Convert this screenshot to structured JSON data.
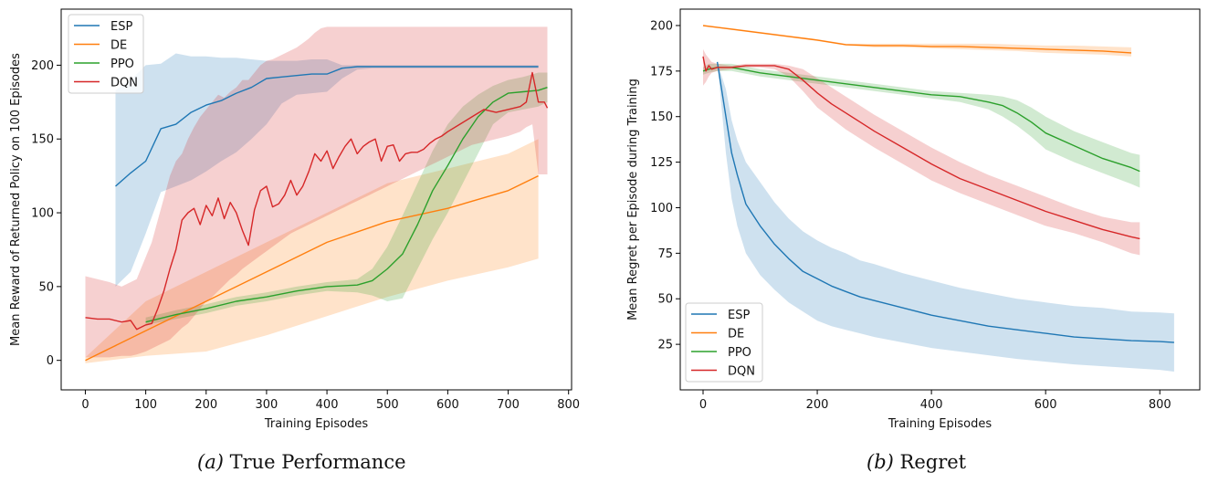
{
  "chart_data": [
    {
      "id": "a",
      "type": "line",
      "caption_letter": "(a)",
      "caption_text": "True Performance",
      "title": "",
      "xlabel": "Training Episodes",
      "ylabel": "Mean Reward of Returned Policy on 100 Episodes",
      "xlim": [
        -40,
        805
      ],
      "ylim": [
        -20,
        238
      ],
      "xticks": [
        0,
        100,
        200,
        300,
        400,
        500,
        600,
        700,
        800
      ],
      "yticks": [
        0,
        50,
        100,
        150,
        200
      ],
      "grid": false,
      "legend_position": "top-left",
      "series": [
        {
          "name": "ESP",
          "color": "#1f77b4",
          "x": [
            50,
            75,
            100,
            125,
            150,
            175,
            200,
            225,
            250,
            275,
            300,
            325,
            350,
            375,
            400,
            425,
            450,
            475,
            500,
            525,
            550,
            575,
            600,
            625,
            650,
            675,
            700,
            725,
            750
          ],
          "y": [
            118,
            127,
            135,
            157,
            160,
            168,
            173,
            176,
            181,
            185,
            191,
            192,
            193,
            194,
            194,
            198,
            199,
            199,
            199,
            199,
            199,
            199,
            199,
            199,
            199,
            199,
            199,
            199,
            199
          ],
          "band_upper": [
            183,
            190,
            200,
            201,
            208,
            206,
            206,
            205,
            205,
            204,
            203,
            203,
            203,
            204,
            204,
            200,
            200,
            200,
            200,
            200,
            200,
            200,
            200,
            200,
            200,
            200,
            200,
            200,
            200
          ],
          "band_lower": [
            50,
            60,
            86,
            114,
            118,
            122,
            128,
            135,
            141,
            150,
            160,
            174,
            180,
            181,
            182,
            191,
            197,
            198,
            198,
            198,
            198,
            198,
            198,
            198,
            198,
            198,
            198,
            198,
            198
          ]
        },
        {
          "name": "DE",
          "color": "#ff7f0e",
          "x": [
            0,
            100,
            200,
            300,
            400,
            500,
            600,
            700,
            750
          ],
          "y": [
            0,
            20,
            40,
            60,
            80,
            94,
            103,
            115,
            125
          ],
          "band_upper": [
            2,
            40,
            60,
            80,
            100,
            120,
            130,
            140,
            150
          ],
          "band_lower": [
            -2,
            3,
            6,
            17,
            30,
            43,
            54,
            63,
            69
          ]
        },
        {
          "name": "PPO",
          "color": "#2ca02c",
          "x": [
            100,
            150,
            200,
            250,
            300,
            350,
            400,
            450,
            475,
            500,
            525,
            550,
            575,
            600,
            625,
            650,
            675,
            700,
            725,
            750,
            765
          ],
          "y": [
            26,
            31,
            35,
            40,
            43,
            47,
            50,
            51,
            54,
            62,
            72,
            92,
            115,
            132,
            150,
            165,
            175,
            181,
            182,
            183,
            185
          ],
          "band_upper": [
            29,
            34,
            38,
            43,
            46,
            50,
            53,
            55,
            62,
            77,
            98,
            120,
            142,
            160,
            172,
            180,
            186,
            190,
            192,
            195,
            195
          ],
          "band_lower": [
            24,
            28,
            32,
            37,
            40,
            44,
            47,
            46,
            44,
            40,
            42,
            62,
            82,
            100,
            120,
            140,
            160,
            168,
            170,
            172,
            175
          ]
        },
        {
          "name": "DQN",
          "color": "#d62728",
          "x": [
            0,
            20,
            40,
            60,
            75,
            85,
            100,
            110,
            120,
            130,
            140,
            150,
            160,
            170,
            180,
            190,
            200,
            210,
            220,
            230,
            240,
            250,
            260,
            270,
            280,
            290,
            300,
            310,
            320,
            330,
            340,
            350,
            360,
            370,
            380,
            390,
            400,
            410,
            420,
            430,
            440,
            450,
            460,
            470,
            480,
            490,
            500,
            510,
            520,
            530,
            540,
            550,
            560,
            570,
            580,
            590,
            600,
            620,
            640,
            660,
            680,
            700,
            720,
            730,
            740,
            750,
            760,
            765
          ],
          "y": [
            29,
            28,
            28,
            26,
            27,
            21,
            24,
            25,
            35,
            47,
            62,
            75,
            95,
            100,
            103,
            92,
            105,
            98,
            110,
            96,
            107,
            100,
            88,
            78,
            102,
            115,
            118,
            104,
            106,
            112,
            122,
            112,
            118,
            128,
            140,
            135,
            142,
            130,
            138,
            145,
            150,
            140,
            145,
            148,
            150,
            135,
            145,
            146,
            135,
            140,
            141,
            141,
            143,
            147,
            150,
            152,
            155,
            160,
            165,
            170,
            168,
            170,
            172,
            175,
            195,
            175,
            175,
            171
          ],
          "band_upper": [
            57,
            55,
            53,
            50,
            53,
            55,
            70,
            80,
            95,
            110,
            125,
            135,
            140,
            150,
            158,
            165,
            170,
            175,
            180,
            178,
            182,
            185,
            190,
            190,
            195,
            200,
            203,
            204,
            206,
            208,
            210,
            212,
            215,
            218,
            222,
            225,
            226,
            226,
            226,
            226,
            226,
            226,
            226,
            226,
            226,
            226,
            226,
            226,
            226,
            226,
            226,
            226,
            226,
            226,
            226,
            226,
            226,
            226,
            226,
            226,
            226,
            226,
            226,
            226,
            226,
            226,
            226,
            226
          ],
          "band_lower": [
            2,
            2,
            2,
            3,
            3,
            4,
            6,
            8,
            10,
            12,
            14,
            18,
            22,
            25,
            30,
            35,
            40,
            43,
            47,
            51,
            55,
            58,
            62,
            65,
            68,
            71,
            74,
            77,
            80,
            83,
            86,
            88,
            90,
            92,
            94,
            96,
            98,
            100,
            102,
            104,
            106,
            108,
            110,
            112,
            114,
            116,
            118,
            120,
            122,
            124,
            126,
            128,
            130,
            132,
            134,
            136,
            138,
            142,
            146,
            148,
            150,
            152,
            155,
            158,
            160,
            126,
            126,
            126
          ]
        }
      ]
    },
    {
      "id": "b",
      "type": "line",
      "caption_letter": "(b)",
      "caption_text": "Regret",
      "title": "",
      "xlabel": "Training Episodes",
      "ylabel": "Mean Regret per Episode during Training",
      "xlim": [
        -40,
        870
      ],
      "ylim": [
        0,
        209
      ],
      "xticks": [
        0,
        200,
        400,
        600,
        800
      ],
      "yticks": [
        25,
        50,
        75,
        100,
        125,
        150,
        175,
        200
      ],
      "grid": false,
      "legend_position": "bottom-left",
      "series": [
        {
          "name": "ESP",
          "color": "#1f77b4",
          "x": [
            25,
            40,
            50,
            60,
            75,
            100,
            125,
            150,
            175,
            200,
            225,
            250,
            275,
            300,
            350,
            400,
            450,
            500,
            550,
            600,
            650,
            700,
            750,
            800,
            825
          ],
          "y": [
            180,
            150,
            130,
            118,
            102,
            90,
            80,
            72,
            65,
            61,
            57,
            54,
            51,
            49,
            45,
            41,
            38,
            35,
            33,
            31,
            29,
            28,
            27,
            26.5,
            26
          ],
          "band_upper": [
            180,
            165,
            148,
            137,
            125,
            114,
            103,
            94,
            87,
            82,
            78,
            75,
            71,
            69,
            64,
            60,
            56,
            53,
            50,
            48,
            46,
            45,
            43,
            42.5,
            42
          ],
          "band_lower": [
            180,
            130,
            105,
            90,
            75,
            63,
            55,
            48,
            43,
            38,
            35,
            33,
            31,
            29,
            26,
            23,
            21,
            19,
            17,
            15.5,
            14,
            13,
            12,
            11,
            10
          ]
        },
        {
          "name": "DE",
          "color": "#ff7f0e",
          "x": [
            0,
            50,
            100,
            150,
            200,
            250,
            300,
            350,
            400,
            450,
            500,
            550,
            600,
            650,
            700,
            750
          ],
          "y": [
            200,
            198,
            196,
            194,
            192,
            189.5,
            189,
            189,
            188.5,
            188.5,
            188,
            187.5,
            187,
            186.5,
            186,
            185
          ],
          "band_upper": [
            200,
            198.5,
            196.5,
            194.5,
            192.5,
            190,
            190,
            190,
            190,
            190,
            190,
            189.5,
            189,
            189,
            188.5,
            188
          ],
          "band_lower": [
            200,
            197.5,
            195.5,
            193.5,
            191.5,
            189,
            188,
            188,
            187.5,
            187,
            186.5,
            186,
            185,
            184.5,
            184,
            183
          ]
        },
        {
          "name": "PPO",
          "color": "#2ca02c",
          "x": [
            0,
            10,
            25,
            50,
            100,
            150,
            200,
            250,
            300,
            350,
            400,
            450,
            500,
            525,
            550,
            575,
            600,
            650,
            700,
            750,
            765
          ],
          "y": [
            175,
            176,
            177,
            177,
            174,
            172,
            170,
            168,
            166,
            164,
            162,
            161,
            158,
            156,
            152,
            147,
            141,
            134,
            127,
            122,
            120
          ],
          "band_upper": [
            177,
            179,
            179,
            179,
            176,
            174,
            172,
            170,
            168,
            166,
            164,
            163,
            162,
            161,
            159,
            155,
            150,
            142,
            136,
            130,
            129
          ],
          "band_lower": [
            173,
            174,
            175,
            175,
            172,
            170,
            168,
            166,
            164,
            162,
            160,
            158,
            154,
            150,
            145,
            139,
            132,
            125,
            119,
            113,
            111
          ]
        },
        {
          "name": "DQN",
          "color": "#d62728",
          "x": [
            0,
            5,
            10,
            15,
            25,
            50,
            75,
            100,
            125,
            150,
            175,
            200,
            225,
            250,
            275,
            300,
            350,
            400,
            450,
            500,
            550,
            600,
            650,
            700,
            750,
            765
          ],
          "y": [
            183,
            175,
            178,
            176,
            177,
            177,
            178,
            178,
            178,
            176,
            170,
            163,
            157,
            152,
            147,
            142,
            133,
            124,
            116,
            110,
            104,
            98,
            93,
            88,
            84,
            83
          ],
          "band_upper": [
            187,
            184,
            182,
            180,
            179,
            178,
            179,
            179,
            179,
            178,
            176,
            171,
            166,
            161,
            156,
            151,
            142,
            133,
            125,
            118,
            112,
            106,
            100,
            95,
            92,
            92
          ],
          "band_lower": [
            167,
            169,
            172,
            174,
            175,
            176,
            177,
            177,
            176,
            172,
            164,
            155,
            149,
            143,
            138,
            133,
            124,
            115,
            108,
            102,
            96,
            90,
            86,
            81,
            75,
            74
          ]
        }
      ]
    }
  ]
}
